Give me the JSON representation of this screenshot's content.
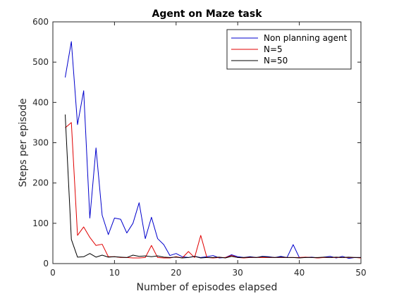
{
  "chart_data": {
    "type": "line",
    "title": "Agent on Maze task",
    "xlabel": "Number of episodes elapsed",
    "ylabel": "Steps per episode",
    "xlim": [
      0,
      50
    ],
    "ylim": [
      0,
      600
    ],
    "xticks": [
      0,
      10,
      20,
      30,
      40,
      50
    ],
    "yticks": [
      0,
      100,
      200,
      300,
      400,
      500,
      600
    ],
    "grid": false,
    "legend_position": "top-right",
    "x": [
      2,
      3,
      4,
      5,
      6,
      7,
      8,
      9,
      10,
      11,
      12,
      13,
      14,
      15,
      16,
      17,
      18,
      19,
      20,
      21,
      22,
      23,
      24,
      25,
      26,
      27,
      28,
      29,
      30,
      31,
      32,
      33,
      34,
      35,
      36,
      37,
      38,
      39,
      40,
      41,
      42,
      43,
      44,
      45,
      46,
      47,
      48,
      49,
      50
    ],
    "series": [
      {
        "name": "Non planning agent",
        "color": "#0000cc",
        "values": [
          462,
          551,
          345,
          429,
          113,
          287,
          120,
          72,
          113,
          110,
          76,
          100,
          151,
          62,
          115,
          62,
          47,
          20,
          25,
          17,
          15,
          18,
          15,
          17,
          20,
          14,
          15,
          22,
          17,
          15,
          17,
          15,
          18,
          17,
          15,
          18,
          15,
          47,
          15,
          15,
          16,
          14,
          16,
          18,
          14,
          18,
          13,
          15,
          15
        ]
      },
      {
        "name": "N=5",
        "color": "#e00000",
        "values": [
          337,
          350,
          70,
          91,
          65,
          45,
          48,
          17,
          17,
          15,
          15,
          14,
          14,
          15,
          45,
          15,
          14,
          14,
          17,
          14,
          30,
          15,
          70,
          15,
          14,
          15,
          15,
          20,
          15,
          14,
          15,
          15,
          15,
          15,
          15,
          15,
          15,
          15,
          15,
          16,
          15,
          14,
          15,
          15,
          15,
          15,
          15,
          15,
          14
        ]
      },
      {
        "name": "N=50",
        "color": "#000000",
        "values": [
          370,
          60,
          16,
          17,
          25,
          16,
          21,
          16,
          17,
          16,
          15,
          21,
          18,
          19,
          17,
          19,
          16,
          15,
          16,
          14,
          15,
          18,
          14,
          15,
          15,
          16,
          14,
          18,
          15,
          15,
          16,
          15,
          17,
          16,
          15,
          16,
          15,
          15,
          14,
          15,
          15,
          15,
          16,
          15,
          16,
          15,
          16,
          15,
          15
        ]
      }
    ]
  }
}
